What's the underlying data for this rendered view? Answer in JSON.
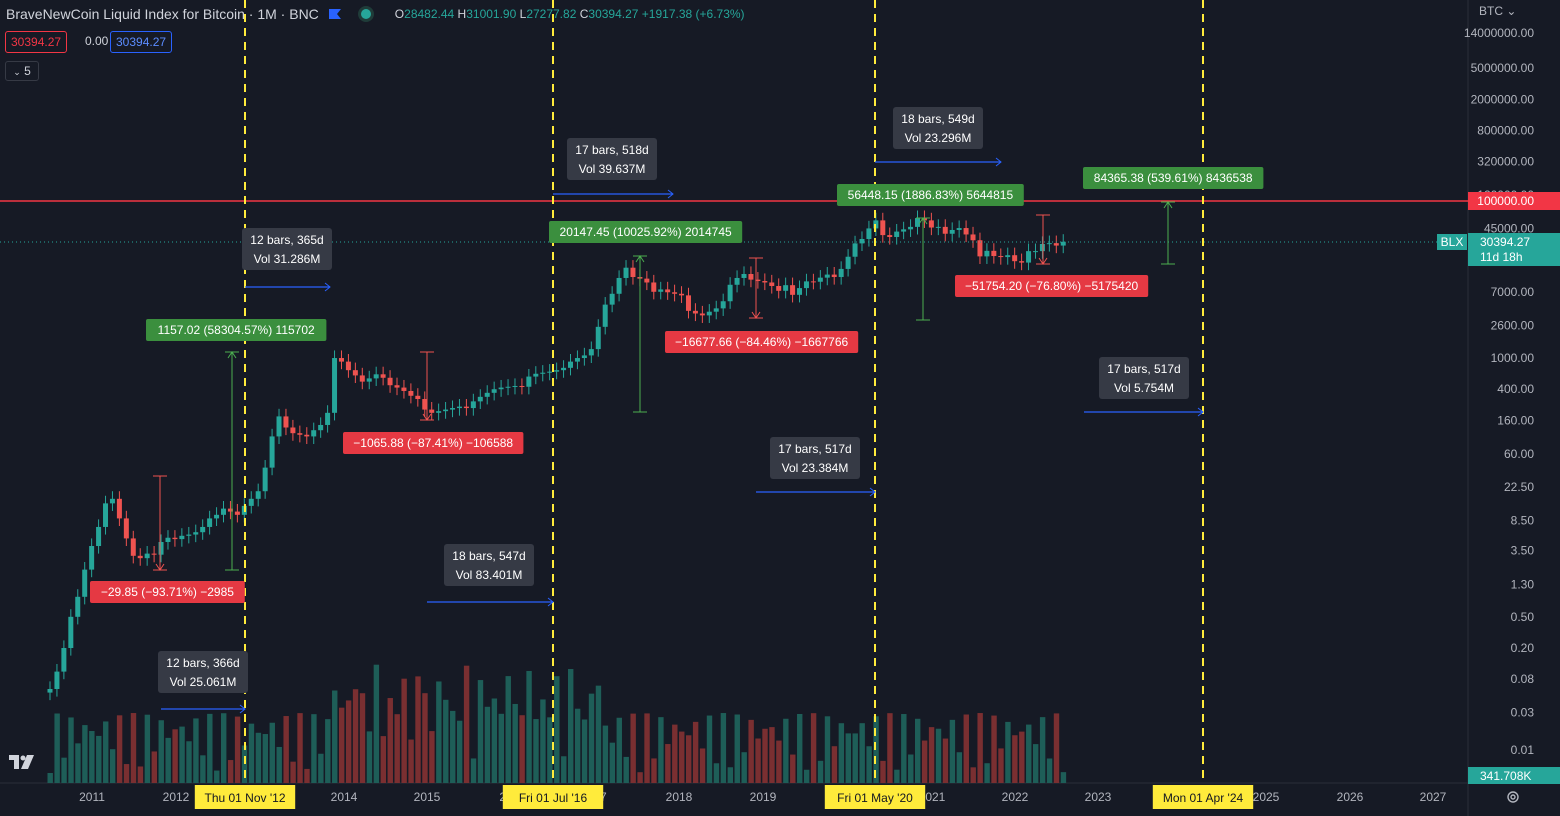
{
  "header": {
    "title": "BraveNewCoin Liquid Index for Bitcoin · 1M · BNC",
    "o_label": "O",
    "o": "28482.44",
    "h_label": "H",
    "h": "31001.90",
    "l_label": "L",
    "l": "27277.82",
    "c_label": "C",
    "c": "30394.27",
    "change": "+1917.38 (+6.73%)"
  },
  "price_boxes": {
    "bid": "30394.27",
    "spread": "0.00",
    "ask": "30394.27"
  },
  "indicator_count": "5",
  "axis": {
    "currency": "BTC",
    "symbol_tag": "BLX",
    "last_price": "30394.27",
    "countdown": "11d 18h",
    "volume_tag": "341.708K"
  },
  "colors": {
    "bg": "#161a25",
    "up": "#26a69a",
    "down": "#ef5350",
    "accent_blue": "#2962ff",
    "resistance": "#f23645",
    "vline": "#ffeb3b"
  },
  "chart_data": {
    "type": "candlestick",
    "title": "BraveNewCoin Liquid Index for Bitcoin",
    "y_scale": "log",
    "y_ticks": [
      "14000000.00",
      "5000000.00",
      "2000000.00",
      "800000.00",
      "320000.00",
      "120000.00",
      "45000.00",
      "18000.00",
      "7000.00",
      "2600.00",
      "1000.00",
      "400.00",
      "160.00",
      "60.00",
      "22.50",
      "8.50",
      "3.50",
      "1.30",
      "0.50",
      "0.20",
      "0.08",
      "0.03",
      "0.01"
    ],
    "x_ticks": [
      "2011",
      "2012",
      "2014",
      "2015",
      "20",
      "17",
      "2018",
      "2019",
      "2021",
      "2022",
      "2023",
      "2025",
      "2026",
      "2027"
    ],
    "date_markers": [
      "Thu 01 Nov '12",
      "Fri 01 Jul '16",
      "Fri 01 May '20",
      "Mon 01 Apr '24"
    ],
    "resistance_line": "100000.00",
    "closes": [
      0.06,
      0.1,
      0.2,
      0.5,
      0.9,
      2,
      4,
      7,
      14,
      16,
      9,
      5,
      3,
      2.8,
      3.2,
      3.1,
      4.5,
      5.1,
      4.9,
      5.4,
      5.6,
      6,
      7,
      9,
      10,
      12,
      11,
      10,
      13,
      16,
      20,
      40,
      100,
      180,
      130,
      110,
      105,
      100,
      120,
      140,
      200,
      1000,
      900,
      700,
      600,
      500,
      550,
      620,
      560,
      450,
      420,
      380,
      330,
      300,
      220,
      200,
      210,
      220,
      230,
      240,
      230,
      280,
      320,
      360,
      400,
      420,
      430,
      440,
      430,
      580,
      630,
      650,
      670,
      700,
      750,
      900,
      1000,
      1080,
      1300,
      2500,
      4800,
      6600,
      10500,
      14200,
      10800,
      10300,
      9200,
      7000,
      7500,
      6900,
      6600,
      6300,
      4000,
      3700,
      3500,
      3900,
      4300,
      5300,
      8600,
      10500,
      11800,
      10000,
      9600,
      9200,
      8300,
      7200,
      8500,
      6400,
      7800,
      9500,
      9400,
      10600,
      11600,
      10800,
      13700,
      19600,
      29000,
      33000,
      45000,
      57000,
      37000,
      35000,
      41000,
      43800,
      47100,
      61000,
      57000,
      46200,
      47100,
      38500,
      43000,
      45500,
      37700,
      31800,
      19800,
      23300,
      20000,
      19400,
      20500,
      17200,
      16500,
      23100,
      23100,
      28500,
      29200,
      27200,
      30394
    ]
  },
  "measurements": [
    {
      "label": "12 bars, 366d",
      "vol": "Vol 25.061M"
    },
    {
      "label": "12 bars, 365d",
      "vol": "Vol 31.286M"
    },
    {
      "label": "18 bars, 547d",
      "vol": "Vol 83.401M"
    },
    {
      "label": "17 bars, 518d",
      "vol": "Vol 39.637M"
    },
    {
      "label": "17 bars, 517d",
      "vol": "Vol 23.384M"
    },
    {
      "label": "18 bars, 549d",
      "vol": "Vol 23.296M"
    },
    {
      "label": "17 bars, 517d",
      "vol": "Vol 5.754M"
    }
  ],
  "ranges": [
    {
      "label": "1157.02 (58304.57%) 115702",
      "kind": "up"
    },
    {
      "label": "−29.85 (−93.71%) −2985",
      "kind": "down"
    },
    {
      "label": "−1065.88 (−87.41%) −106588",
      "kind": "down"
    },
    {
      "label": "20147.45 (10025.92%) 2014745",
      "kind": "up"
    },
    {
      "label": "−16677.66 (−84.46%) −1667766",
      "kind": "down"
    },
    {
      "label": "56448.15 (1886.83%) 5644815",
      "kind": "up"
    },
    {
      "label": "−51754.20 (−76.80%) −5175420",
      "kind": "down"
    },
    {
      "label": "84365.38 (539.61%) 8436538",
      "kind": "up"
    }
  ]
}
